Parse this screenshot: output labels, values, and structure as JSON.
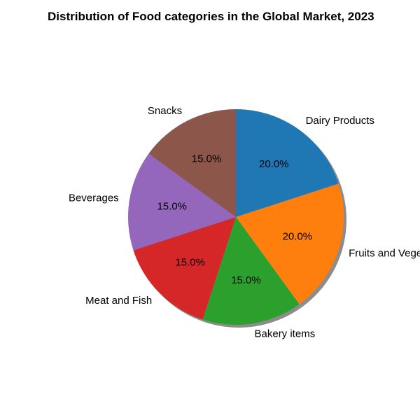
{
  "chart_data": {
    "type": "pie",
    "title": "Distribution of Food categories in the Global Market, 2023",
    "categories": [
      "Dairy Products",
      "Fruits and Vegetables",
      "Bakery items",
      "Meat and Fish",
      "Beverages",
      "Snacks"
    ],
    "values": [
      20,
      20,
      15,
      15,
      15,
      15
    ],
    "pct_labels": [
      "20.0%",
      "20.0%",
      "15.0%",
      "15.0%",
      "15.0%",
      "15.0%"
    ],
    "colors": [
      "#1f77b4",
      "#ff7f0e",
      "#2ca02c",
      "#d62728",
      "#9467bd",
      "#8c564b"
    ],
    "start_angle": 90,
    "direction": "clockwise",
    "shadow": true,
    "legend": "none"
  }
}
